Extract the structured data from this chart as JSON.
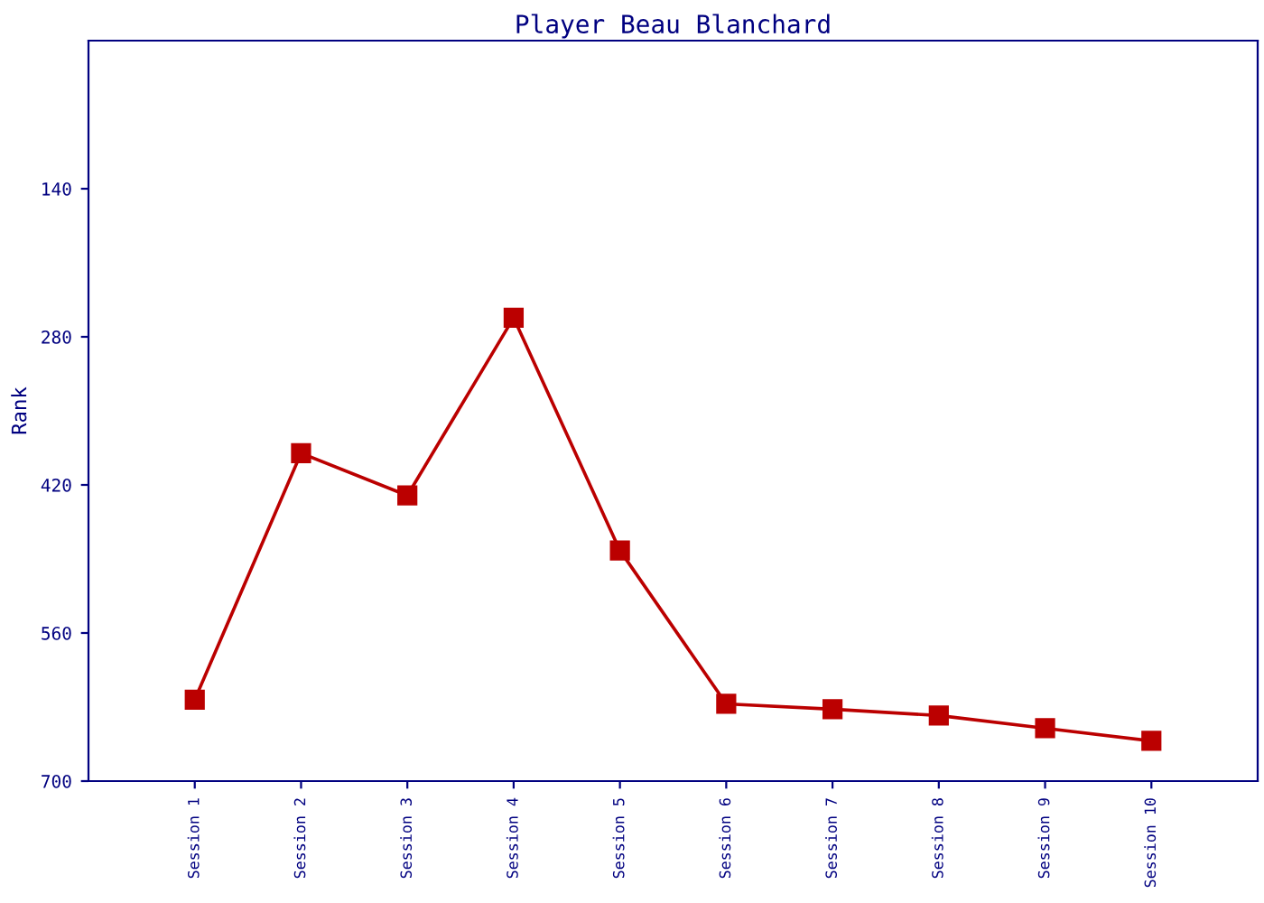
{
  "chart_data": {
    "type": "line",
    "title": "Player Beau Blanchard",
    "ylabel": "Rank",
    "categories": [
      "Session 1",
      "Session 2",
      "Session 3",
      "Session 4",
      "Session 5",
      "Session 6",
      "Session 7",
      "Session 8",
      "Session 9",
      "Session 10"
    ],
    "series": [
      {
        "color": "#bb0000",
        "values": [
          623,
          390,
          430,
          262,
          482,
          627,
          632,
          638,
          650,
          662
        ]
      }
    ],
    "ylim": [
      700,
      0
    ],
    "yticks": [
      140,
      280,
      420,
      560,
      700
    ],
    "marker": "square",
    "line_style": "solid",
    "grid": false,
    "legend": false
  }
}
